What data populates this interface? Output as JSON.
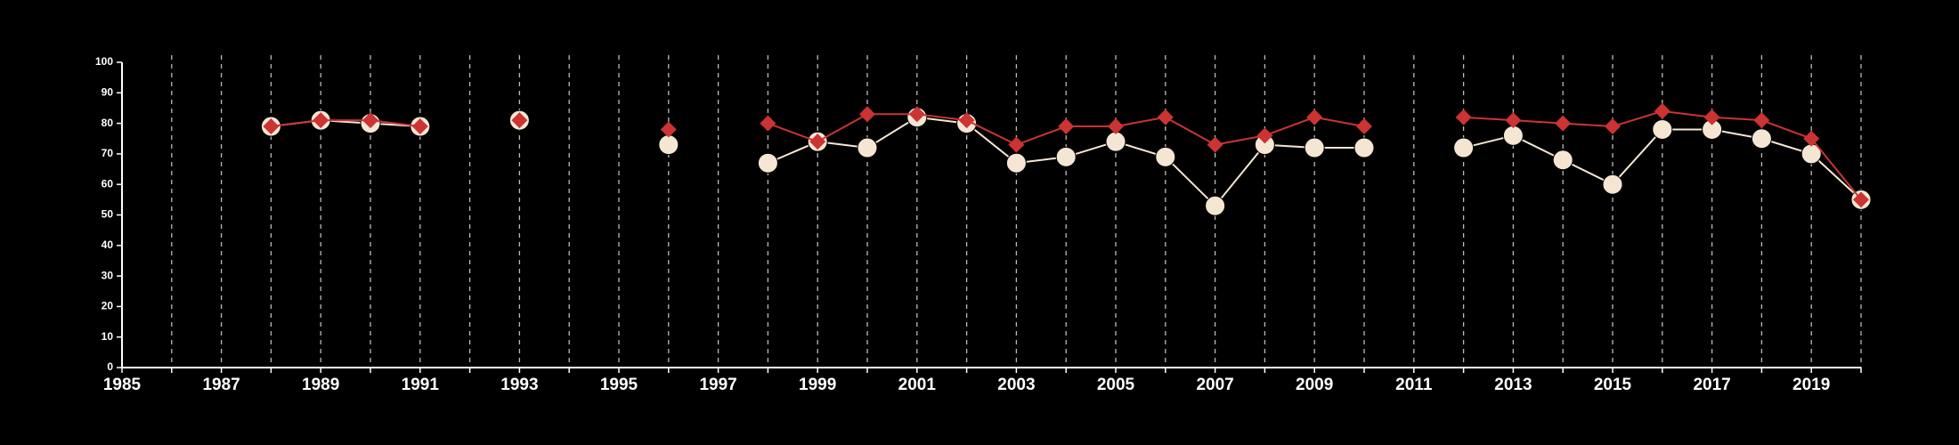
{
  "chart_data": {
    "type": "line",
    "title": "",
    "xlabel": "",
    "ylabel": "",
    "xlim": [
      1985,
      2020
    ],
    "ylim": [
      0,
      100
    ],
    "x_ticks": [
      1985,
      1987,
      1989,
      1991,
      1993,
      1995,
      1997,
      1999,
      2001,
      2003,
      2005,
      2007,
      2009,
      2011,
      2013,
      2015,
      2017,
      2019
    ],
    "y_ticks": [
      0,
      10,
      20,
      30,
      40,
      50,
      60,
      70,
      80,
      90,
      100
    ],
    "grid": "vertical dashed lines at every year",
    "legend": "none",
    "series": [
      {
        "color": "#f5e6d3",
        "marker": "circle",
        "points": [
          [
            1988,
            79
          ],
          [
            1989,
            81
          ],
          [
            1990,
            80
          ],
          [
            1991,
            79
          ],
          [
            1993,
            81
          ],
          [
            1996,
            73
          ],
          [
            1998,
            67
          ],
          [
            1999,
            74
          ],
          [
            2000,
            72
          ],
          [
            2001,
            82
          ],
          [
            2002,
            80
          ],
          [
            2003,
            67
          ],
          [
            2004,
            69
          ],
          [
            2005,
            74
          ],
          [
            2006,
            69
          ],
          [
            2007,
            53
          ],
          [
            2008,
            73
          ],
          [
            2009,
            72
          ],
          [
            2010,
            72
          ],
          [
            2012,
            72
          ],
          [
            2013,
            76
          ],
          [
            2014,
            68
          ],
          [
            2015,
            60
          ],
          [
            2016,
            78
          ],
          [
            2017,
            78
          ],
          [
            2018,
            75
          ],
          [
            2019,
            70
          ],
          [
            2020,
            55
          ]
        ]
      },
      {
        "color": "#cc3333",
        "marker": "diamond",
        "points": [
          [
            1988,
            79
          ],
          [
            1989,
            81
          ],
          [
            1990,
            81
          ],
          [
            1991,
            79
          ],
          [
            1993,
            81
          ],
          [
            1996,
            78
          ],
          [
            1998,
            80
          ],
          [
            1999,
            74
          ],
          [
            2000,
            83
          ],
          [
            2001,
            83
          ],
          [
            2002,
            81
          ],
          [
            2003,
            73
          ],
          [
            2004,
            79
          ],
          [
            2005,
            79
          ],
          [
            2006,
            82
          ],
          [
            2007,
            73
          ],
          [
            2008,
            76
          ],
          [
            2009,
            82
          ],
          [
            2010,
            79
          ],
          [
            2012,
            82
          ],
          [
            2013,
            81
          ],
          [
            2014,
            80
          ],
          [
            2015,
            79
          ],
          [
            2016,
            84
          ],
          [
            2017,
            82
          ],
          [
            2018,
            81
          ],
          [
            2019,
            75
          ],
          [
            2020,
            55
          ]
        ]
      }
    ]
  }
}
